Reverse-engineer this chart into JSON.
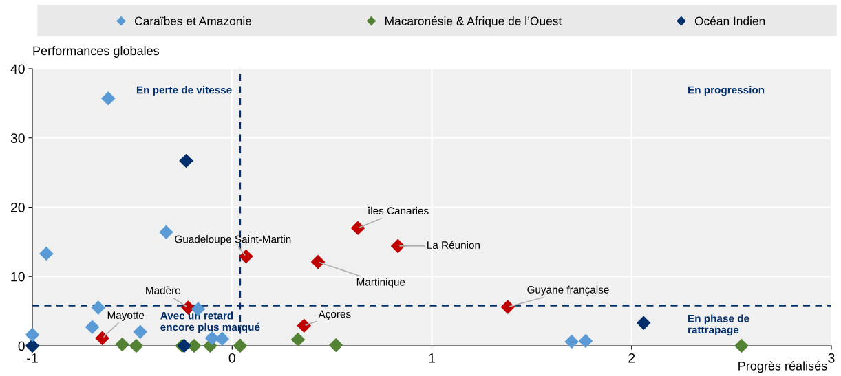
{
  "chart_data": {
    "type": "scatter",
    "xlabel": "Progrès réalisés",
    "ylabel": "Performances globales",
    "xlim": [
      -1,
      3
    ],
    "ylim": [
      0,
      40
    ],
    "xticks": [
      -1,
      0,
      1,
      2,
      3
    ],
    "yticks": [
      0,
      10,
      20,
      30,
      40
    ],
    "grid": true,
    "legend": "top",
    "marker": "diamond",
    "series": [
      {
        "name": "Caraïbes et Amazonie",
        "color": "#5b9bd5",
        "x": [
          -0.62,
          -0.33,
          -0.93,
          -0.67,
          -0.17,
          -0.7,
          -0.46,
          -1,
          -0.1,
          -0.05,
          1.7,
          1.77
        ],
        "values": [
          35.7,
          16.4,
          13.3,
          5.5,
          5.3,
          2.7,
          2.0,
          1.6,
          1.1,
          1.0,
          0.6,
          0.7
        ]
      },
      {
        "name": "Macaronésie & Afrique de l’Ouest",
        "color": "#548235",
        "x": [
          -0.55,
          -0.48,
          -0.25,
          -0.19,
          -0.11,
          0.04,
          0.33,
          0.52,
          2.55
        ],
        "values": [
          0.2,
          0,
          0,
          0,
          0,
          0,
          0.9,
          0.1,
          0
        ]
      },
      {
        "name": "Océan Indien",
        "color": "#002f6c",
        "x": [
          -0.23,
          -1,
          -0.24,
          2.06
        ],
        "values": [
          26.7,
          0,
          0,
          3.3
        ]
      },
      {
        "color": "#c00000",
        "x": [
          0.63,
          0.83,
          0.07,
          0.43,
          -0.22,
          1.38,
          0.36,
          -0.65
        ],
        "values": [
          17.0,
          14.4,
          12.9,
          12.1,
          5.5,
          5.6,
          2.9,
          1.1
        ]
      }
    ],
    "ref_lines": [
      {
        "axis": "x",
        "value": 0.04,
        "color": "#002f6c",
        "line_style": "dashed"
      },
      {
        "axis": "y",
        "value": 5.8,
        "color": "#002f6c",
        "line_style": "dashed"
      }
    ],
    "annotations": [
      {
        "text": "îles Canaries",
        "x": 0.63,
        "y": 17.0
      },
      {
        "text": "La Réunion",
        "x": 0.83,
        "y": 14.4
      },
      {
        "text": "Guadeloupe Saint-Martin",
        "x": 0.07,
        "y": 12.9
      },
      {
        "text": "Martinique",
        "x": 0.43,
        "y": 12.1
      },
      {
        "text": "Madère",
        "x": -0.22,
        "y": 5.5
      },
      {
        "text": "Guyane française",
        "x": 1.38,
        "y": 5.6
      },
      {
        "text": "Açores",
        "x": 0.36,
        "y": 2.9
      },
      {
        "text": "Mayotte",
        "x": -0.65,
        "y": 1.1
      },
      "En perte de vitesse",
      "En progression",
      "Avec un retard\nencore plus marqué",
      "En phase de\nrattrapage"
    ]
  }
}
